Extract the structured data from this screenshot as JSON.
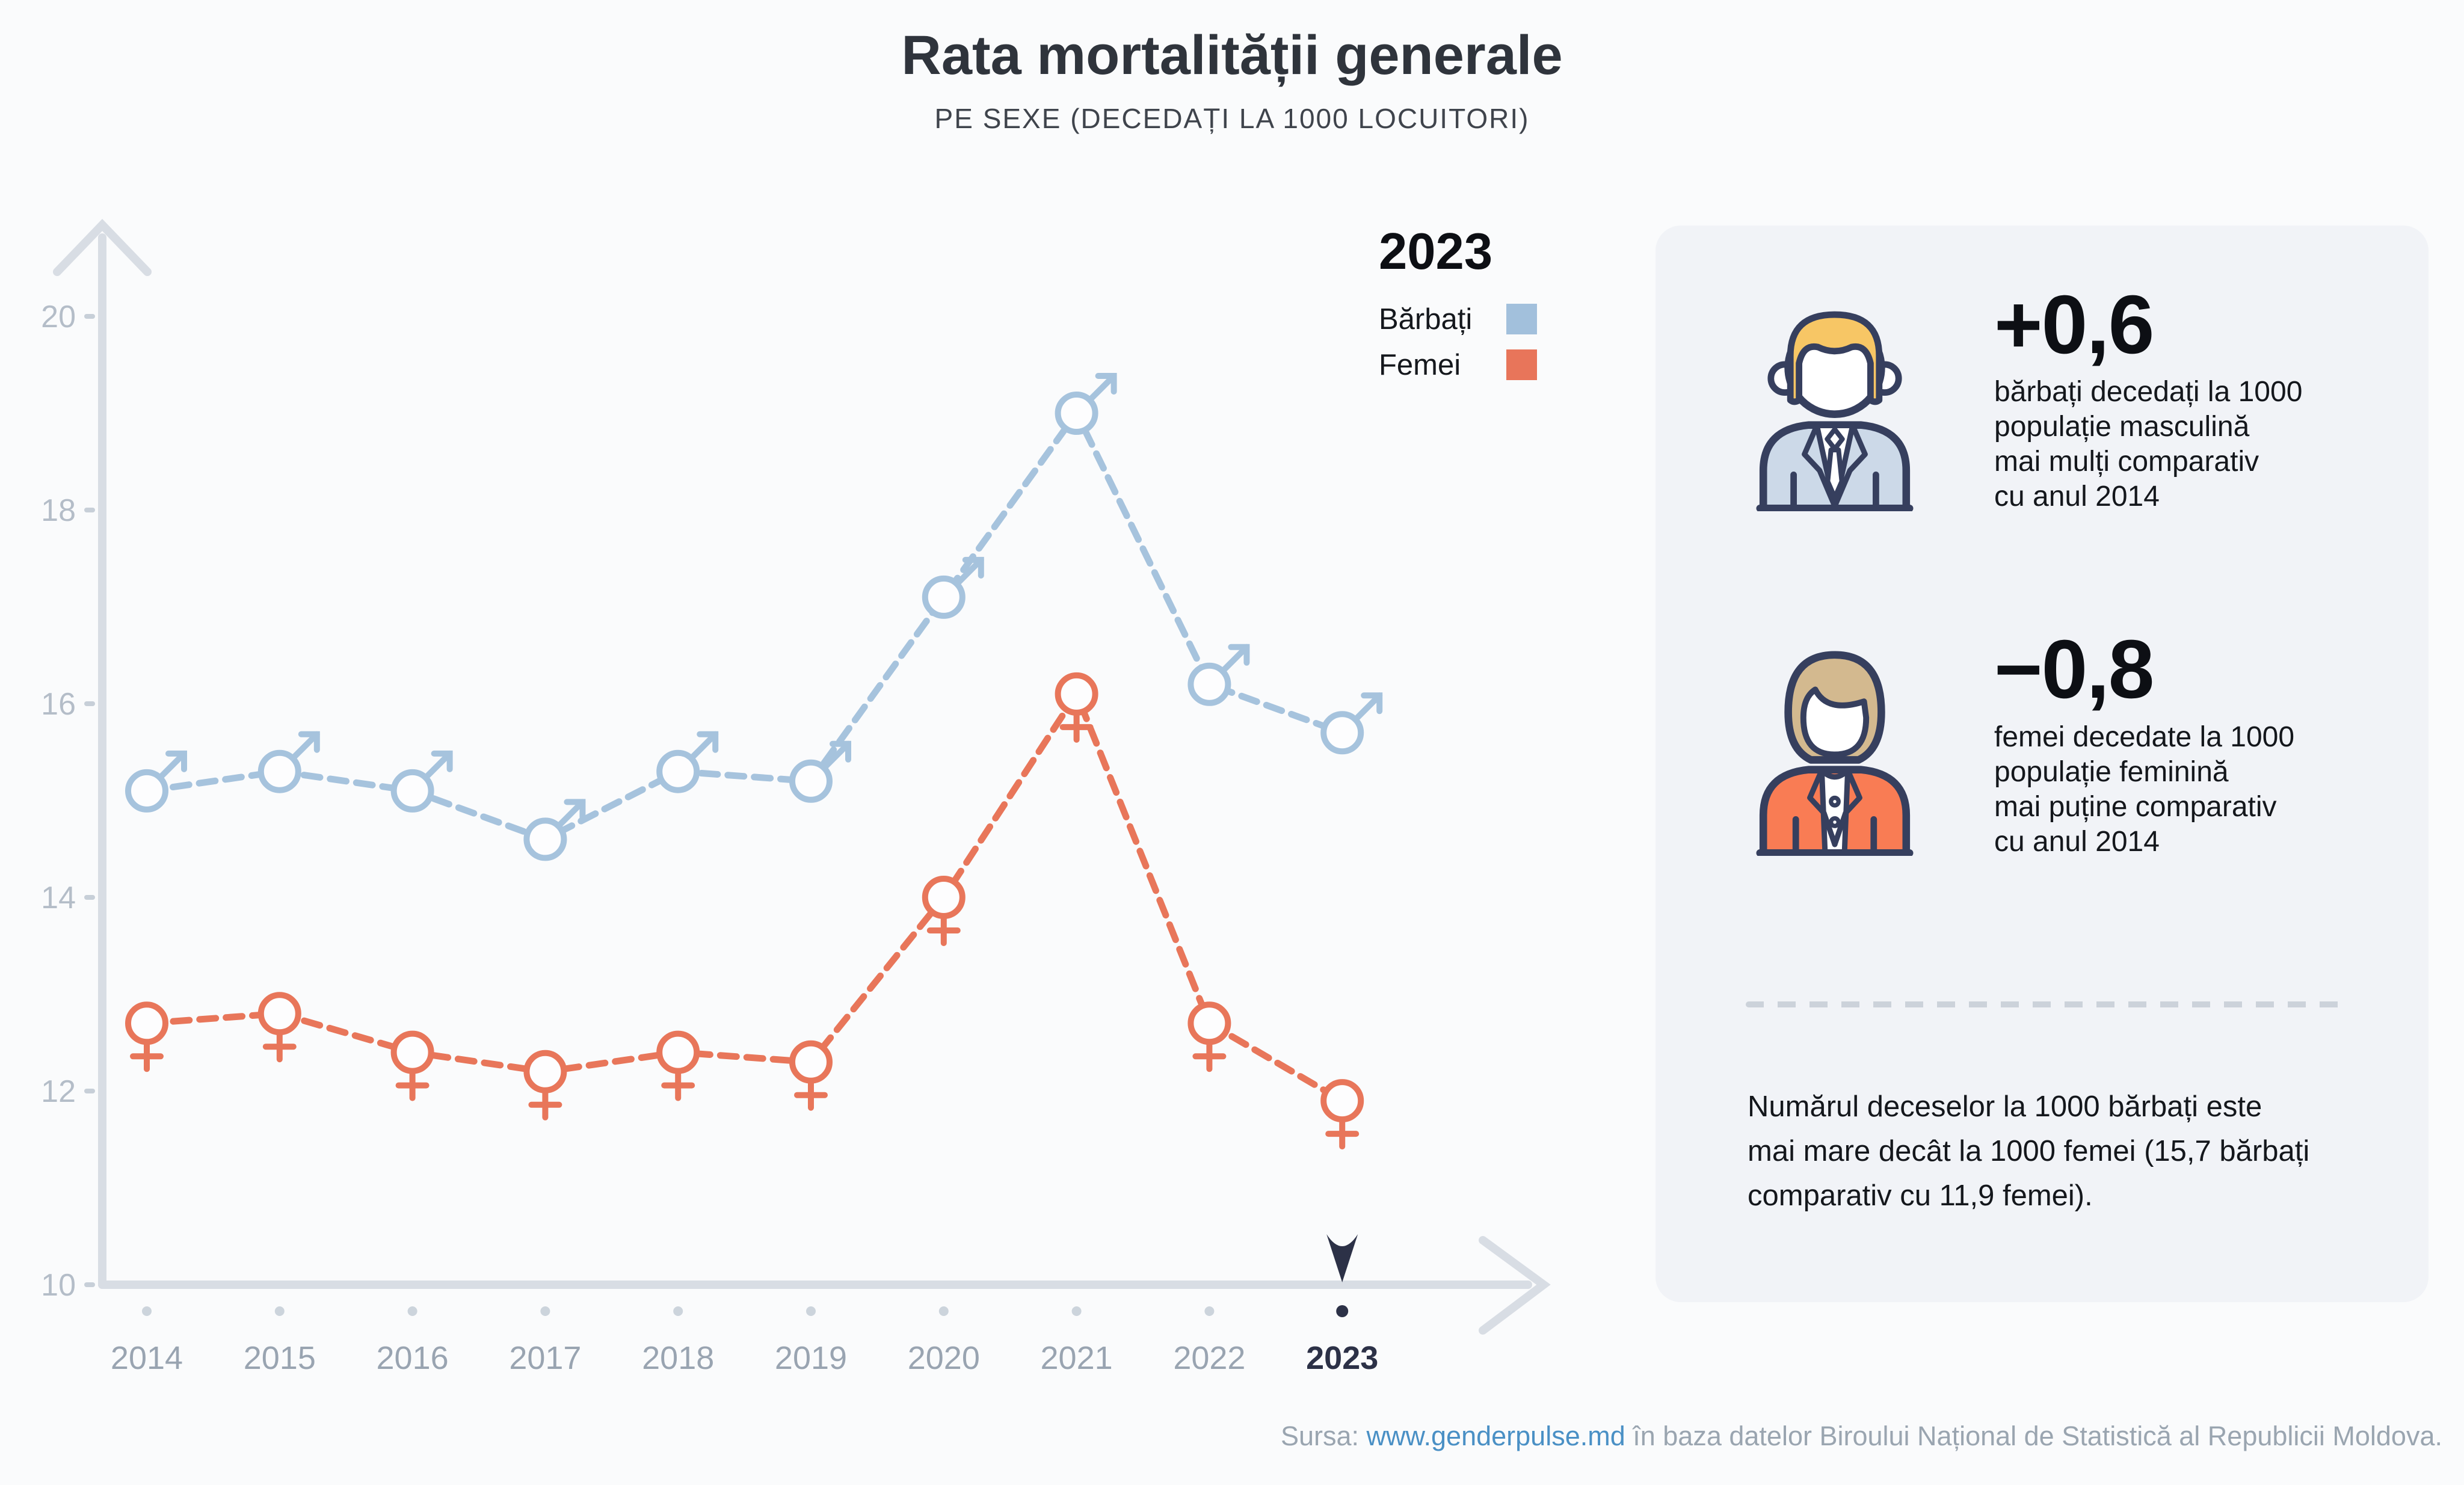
{
  "page": {
    "title": "Rata mortalității generale",
    "subtitle": "PE SEXE (DECEDAȚI LA 1000 LOCUITORI)"
  },
  "legend": {
    "selected_year": "2023",
    "items": [
      {
        "label": "Bărbați",
        "color": "#a2c0dc"
      },
      {
        "label": "Femei",
        "color": "#e8755a"
      }
    ]
  },
  "chart_data": {
    "type": "line",
    "title": "Rata mortalității generale",
    "subtitle": "PE SEXE (DECEDAȚI LA 1000 LOCUITORI)",
    "x": [
      2014,
      2015,
      2016,
      2017,
      2018,
      2019,
      2020,
      2021,
      2022,
      2023
    ],
    "series": [
      {
        "name": "Bărbați",
        "marker": "male",
        "color": "#a6c3dd",
        "values": [
          15.1,
          15.3,
          15.1,
          14.6,
          15.3,
          15.2,
          17.1,
          19.0,
          16.2,
          15.7
        ]
      },
      {
        "name": "Femei",
        "marker": "female",
        "color": "#e8765a",
        "values": [
          12.7,
          12.8,
          12.4,
          12.2,
          12.4,
          12.3,
          14.0,
          16.1,
          12.7,
          11.9
        ]
      }
    ],
    "ylim": [
      10,
      20
    ],
    "yticks": [
      20,
      18,
      16,
      14,
      12,
      10
    ],
    "highlight_year": 2023,
    "grid": false,
    "legend_position": "top-right",
    "line_style": "dashed"
  },
  "panel": {
    "male": {
      "delta": "+0,6",
      "lines": [
        "bărbați decedați la 1000",
        "populație masculină",
        "mai mulți comparativ",
        "cu anul 2014"
      ]
    },
    "female": {
      "delta": "−0,8",
      "lines": [
        "femei decedate la 1000",
        "populație feminină",
        "mai puține comparativ",
        "cu anul 2014"
      ]
    },
    "note_lines": [
      "Numărul deceselor la 1000 bărbați este",
      "mai mare decât la 1000 femei (15,7 bărbați",
      "comparativ cu 11,9 femei)."
    ]
  },
  "footer": {
    "prefix": "Sursa: ",
    "link": "www.genderpulse.md",
    "suffix": " în baza datelor Biroului Național de Statistică al Republicii Moldova."
  },
  "colors": {
    "accent": "#2c3147",
    "axis": "#d8dde4",
    "tick": "#c7cfd8",
    "dot": "#ccd4dc",
    "ylabel": "#b4bdc8",
    "xlabel": "#99a4b1",
    "male": "#a6c3dd",
    "female": "#e8765a",
    "marker_fill": "#fdfdfe",
    "link": "#4a90c5",
    "panel_bg": "#f1f3f7"
  }
}
